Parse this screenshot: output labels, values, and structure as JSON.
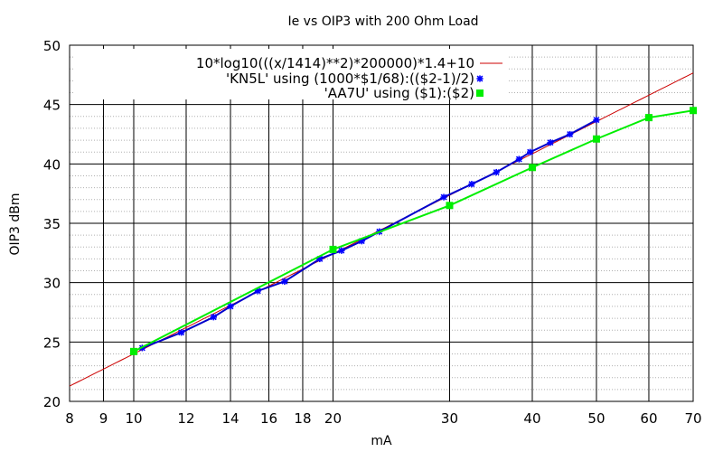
{
  "chart_data": {
    "type": "line",
    "title": "Ie vs OIP3 with 200 Ohm Load",
    "xlabel": "mA",
    "ylabel": "OIP3 dBm",
    "xscale": "log",
    "xlim": [
      8,
      70
    ],
    "ylim": [
      20,
      50
    ],
    "grid": true,
    "legend_position": "top-right",
    "x_ticks": [
      8,
      9,
      10,
      12,
      14,
      16,
      18,
      20,
      30,
      40,
      50,
      60,
      70
    ],
    "y_ticks": [
      20,
      25,
      30,
      35,
      40,
      45,
      50
    ],
    "series": [
      {
        "name": "10*log10(((x/1414)**2)*200000)*1.4+10",
        "style": "line",
        "color": "#cc0000",
        "formula": "10*log10(((x/1414)**2)*200000)*1.4+10"
      },
      {
        "name": "'KN5L' using (1000*$1/68):(($2-1)/2)",
        "style": "linespoints",
        "color": "#0000ff",
        "line_color": "#0000cc",
        "x": [
          10.3,
          11.8,
          13.2,
          14.0,
          15.4,
          16.9,
          19.1,
          20.6,
          22.1,
          23.5,
          29.4,
          32.4,
          35.3,
          38.2,
          39.7,
          42.6,
          45.6,
          50.0
        ],
        "y": [
          24.5,
          25.8,
          27.1,
          28.0,
          29.3,
          30.1,
          32.0,
          32.7,
          33.5,
          34.3,
          37.2,
          38.3,
          39.3,
          40.4,
          41.0,
          41.8,
          42.5,
          43.7
        ]
      },
      {
        "name": "'AA7U' using ($1):($2)",
        "style": "linespoints",
        "color": "#00ee00",
        "x": [
          10,
          20,
          30,
          40,
          50,
          60,
          70
        ],
        "y": [
          24.2,
          32.8,
          36.5,
          39.7,
          42.1,
          43.9,
          44.5
        ]
      }
    ]
  }
}
